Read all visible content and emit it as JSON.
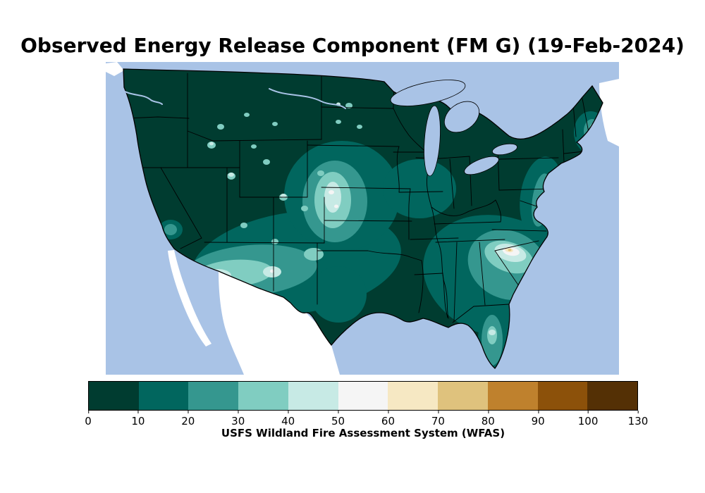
{
  "title": "Observed Energy Release Component (FM G) (19-Feb-2024)",
  "map": {
    "region": "Continental United States",
    "ocean_color": "#a9c3e6",
    "outside_land_color": "#ffffff",
    "boundary_color": "#000000"
  },
  "colorbar": {
    "label": "USFS Wildland Fire Assessment System (WFAS)",
    "tick_labels": [
      "0",
      "10",
      "20",
      "30",
      "40",
      "50",
      "60",
      "70",
      "80",
      "90",
      "100",
      "130"
    ],
    "segments": [
      {
        "range": "0-10",
        "color": "#003c30"
      },
      {
        "range": "10-20",
        "color": "#01665e"
      },
      {
        "range": "20-30",
        "color": "#35978f"
      },
      {
        "range": "30-40",
        "color": "#80cdc1"
      },
      {
        "range": "40-50",
        "color": "#c7eae5"
      },
      {
        "range": "50-60",
        "color": "#f5f5f5"
      },
      {
        "range": "60-70",
        "color": "#f6e8c3"
      },
      {
        "range": "70-80",
        "color": "#dfc27d"
      },
      {
        "range": "80-90",
        "color": "#bf812d"
      },
      {
        "range": "90-100",
        "color": "#8c510a"
      },
      {
        "range": "100-130",
        "color": "#543005"
      }
    ]
  }
}
